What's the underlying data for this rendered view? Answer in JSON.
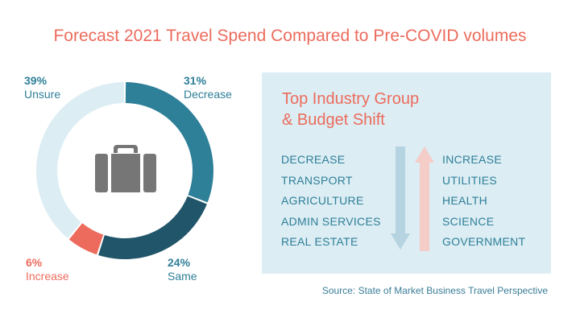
{
  "title": "Forecast 2021 Travel Spend Compared to Pre-COVID volumes",
  "chart_data": {
    "type": "pie",
    "title": "Forecast 2021 Travel Spend Compared to Pre-COVID volumes",
    "slices": [
      {
        "pct_label": "31%",
        "name": "Decrease",
        "value": 31,
        "color": "#2e7f98"
      },
      {
        "pct_label": "24%",
        "name": "Same",
        "value": 24,
        "color": "#21556a"
      },
      {
        "pct_label": "6%",
        "name": "Increase",
        "value": 6,
        "color": "#ec6b5c"
      },
      {
        "pct_label": "39%",
        "name": "Unsure",
        "value": 39,
        "color": "#dcedf4"
      }
    ],
    "center_icon": "briefcase-icon"
  },
  "panel": {
    "title_line1": "Top Industry Group",
    "title_line2": "& Budget Shift",
    "decrease_items": [
      "DECREASE",
      "TRANSPORT",
      "AGRICULTURE",
      "ADMIN SERVICES",
      "REAL ESTATE"
    ],
    "increase_items": [
      "INCREASE",
      "UTILITIES",
      "HEALTH",
      "SCIENCE",
      "GOVERNMENT"
    ],
    "down_arrow_color": "#b5d3e0",
    "up_arrow_color": "#f4cdc8"
  },
  "source": "Source: State of Market Business Travel Perspective",
  "colors": {
    "accent": "#ec6b5c",
    "teal": "#2e7f98",
    "dark_teal": "#21556a",
    "panel_bg": "#dcedf4"
  }
}
